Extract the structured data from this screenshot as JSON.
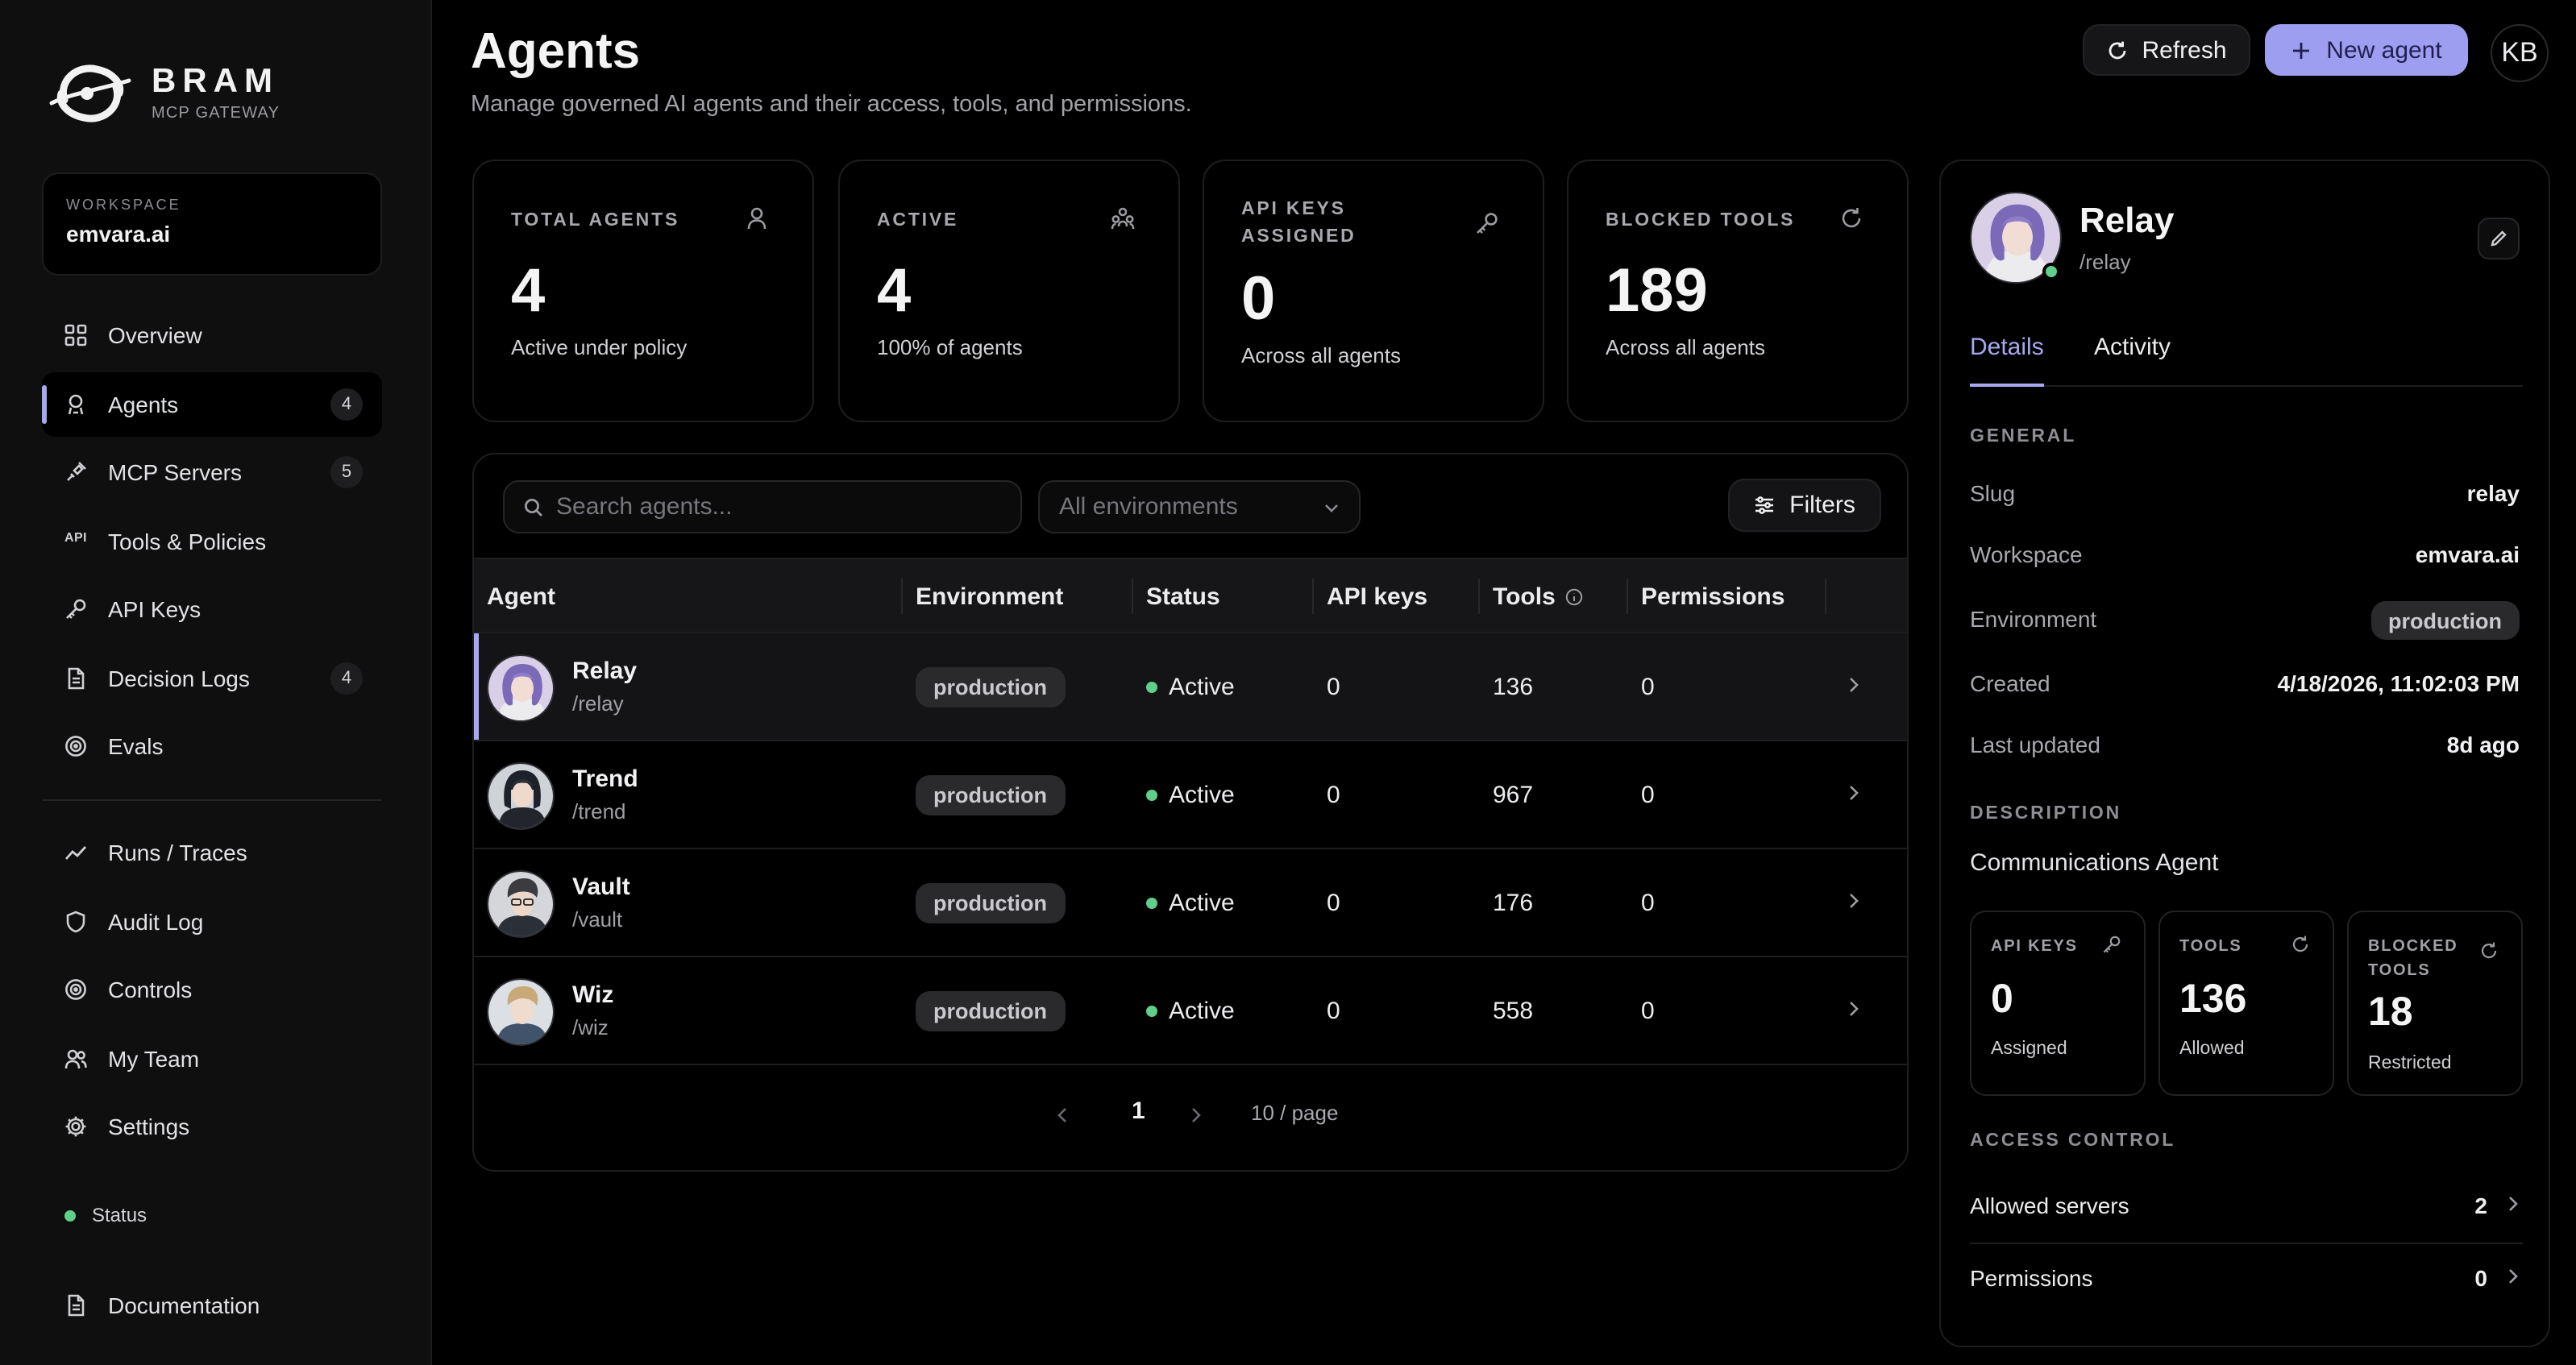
{
  "brand": {
    "name": "BRAM",
    "subtitle": "MCP GATEWAY"
  },
  "workspace": {
    "label": "WORKSPACE",
    "value": "emvara.ai"
  },
  "sidebar": {
    "items": [
      {
        "label": "Overview",
        "icon": "grid-icon"
      },
      {
        "label": "Agents",
        "icon": "robot-icon",
        "badge": "4",
        "active": true
      },
      {
        "label": "MCP Servers",
        "icon": "plug-icon",
        "badge": "5"
      },
      {
        "label": "Tools & Policies",
        "icon": "api-icon"
      },
      {
        "label": "API Keys",
        "icon": "key-icon"
      },
      {
        "label": "Decision Logs",
        "icon": "document-icon",
        "badge": "4"
      },
      {
        "label": "Evals",
        "icon": "target-icon"
      }
    ],
    "items2": [
      {
        "label": "Runs / Traces",
        "icon": "trend-icon"
      },
      {
        "label": "Audit Log",
        "icon": "shield-icon"
      },
      {
        "label": "Controls",
        "icon": "target-icon"
      },
      {
        "label": "My Team",
        "icon": "users-icon"
      },
      {
        "label": "Settings",
        "icon": "gear-icon"
      }
    ],
    "status": "Status",
    "docs": "Documentation"
  },
  "header": {
    "title": "Agents",
    "subtitle": "Manage governed AI agents and their access, tools, and permissions.",
    "refresh": "Refresh",
    "new_agent": "New agent",
    "user_initials": "KB"
  },
  "stats": [
    {
      "label": "TOTAL AGENTS",
      "value": "4",
      "foot": "Active under policy",
      "icon": "user-icon"
    },
    {
      "label": "ACTIVE",
      "value": "4",
      "foot": "100% of agents",
      "icon": "users-icon"
    },
    {
      "label": "API KEYS ASSIGNED",
      "value": "0",
      "foot": "Across all agents",
      "icon": "key-icon"
    },
    {
      "label": "BLOCKED TOOLS",
      "value": "189",
      "foot": "Across all agents",
      "icon": "refresh-shield-icon"
    }
  ],
  "table": {
    "search_placeholder": "Search agents...",
    "env_filter": "All environments",
    "filters": "Filters",
    "columns": [
      "Agent",
      "Environment",
      "Status",
      "API keys",
      "Tools",
      "Permissions"
    ],
    "rows": [
      {
        "name": "Relay",
        "slug": "/relay",
        "env": "production",
        "status": "Active",
        "api_keys": "0",
        "tools": "136",
        "permissions": "0"
      },
      {
        "name": "Trend",
        "slug": "/trend",
        "env": "production",
        "status": "Active",
        "api_keys": "0",
        "tools": "967",
        "permissions": "0"
      },
      {
        "name": "Vault",
        "slug": "/vault",
        "env": "production",
        "status": "Active",
        "api_keys": "0",
        "tools": "176",
        "permissions": "0"
      },
      {
        "name": "Wiz",
        "slug": "/wiz",
        "env": "production",
        "status": "Active",
        "api_keys": "0",
        "tools": "558",
        "permissions": "0"
      }
    ],
    "pager": {
      "page": "1",
      "page_size": "10 / page"
    }
  },
  "detail": {
    "name": "Relay",
    "slug": "/relay",
    "tabs": [
      "Details",
      "Activity"
    ],
    "general_label": "GENERAL",
    "general": [
      {
        "k": "Slug",
        "v": "relay"
      },
      {
        "k": "Workspace",
        "v": "emvara.ai"
      },
      {
        "k": "Environment",
        "v": "production"
      },
      {
        "k": "Created",
        "v": "4/18/2026, 11:02:03 PM"
      },
      {
        "k": "Last updated",
        "v": "8d ago"
      }
    ],
    "description_label": "DESCRIPTION",
    "description": "Communications Agent",
    "mini": [
      {
        "label": "API KEYS",
        "value": "0",
        "foot": "Assigned"
      },
      {
        "label": "TOOLS",
        "value": "136",
        "foot": "Allowed"
      },
      {
        "label": "BLOCKED TOOLS",
        "value": "18",
        "foot": "Restricted"
      }
    ],
    "access_label": "ACCESS CONTROL",
    "access": [
      {
        "k": "Allowed servers",
        "v": "2"
      },
      {
        "k": "Permissions",
        "v": "0"
      }
    ]
  },
  "colors": {
    "accent": "#a7a8ef",
    "primary_button": "#9d9ef0",
    "status_active": "#5fcf8a",
    "background": "#000000",
    "sidebar": "#0f0f10"
  }
}
